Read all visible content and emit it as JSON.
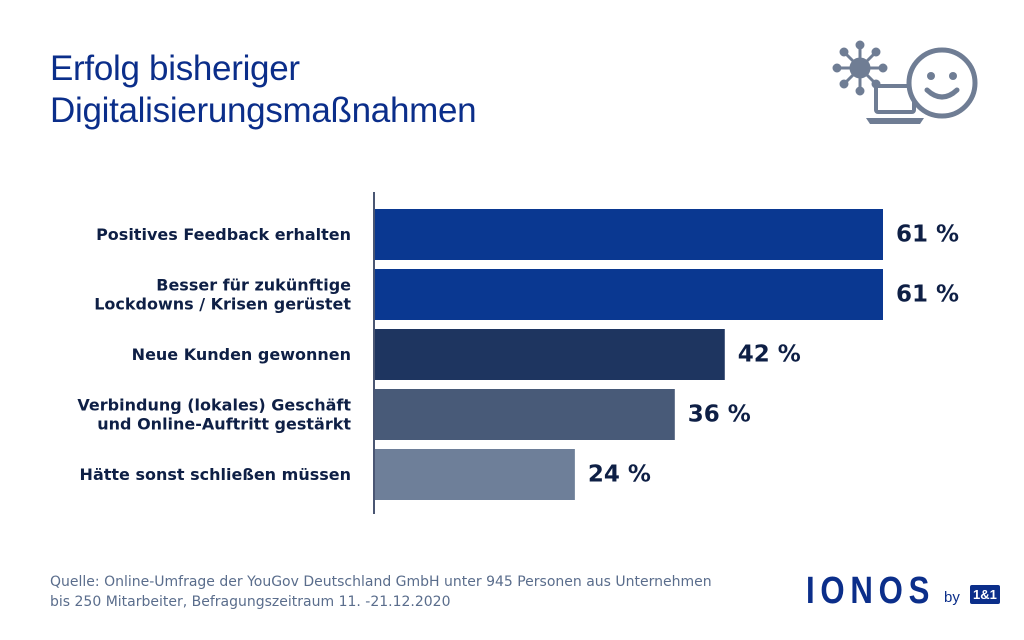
{
  "title_lines": [
    "Erfolg bisheriger",
    "Digitalisierungsmaßnahmen"
  ],
  "chart_data": {
    "type": "bar",
    "orientation": "horizontal",
    "categories": [
      [
        "Positives Feedback erhalten"
      ],
      [
        "Besser für zukünftige",
        "Lockdowns / Krisen gerüstet"
      ],
      [
        "Neue Kunden gewonnen"
      ],
      [
        "Verbindung (lokales) Geschäft",
        "und Online-Auftritt gestärkt"
      ],
      [
        "Hätte sonst schließen müssen"
      ]
    ],
    "values": [
      61,
      61,
      42,
      36,
      24
    ],
    "value_labels": [
      "61 %",
      "61 %",
      "42 %",
      "36 %",
      "24 %"
    ],
    "bar_colors": [
      "#0a3891",
      "#0a3891",
      "#1e3560",
      "#485a78",
      "#6e7f99"
    ],
    "xlim": [
      0,
      61
    ]
  },
  "source_lines": [
    "Quelle: Online-Umfrage der YouGov Deutschland GmbH unter 945 Personen aus Unternehmen",
    "bis 250 Mitarbeiter, Befragungszeitraum 11. -21.12.2020"
  ],
  "logo": {
    "wordmark": "IONOS",
    "by": "by",
    "badge": "1&1"
  },
  "icons": [
    "virus-icon",
    "laptop-icon",
    "smiley-icon"
  ],
  "colors": {
    "title": "#0b2e8a",
    "text": "#0e1f45",
    "source": "#5a6d8c",
    "icon": "#6f7d94"
  }
}
